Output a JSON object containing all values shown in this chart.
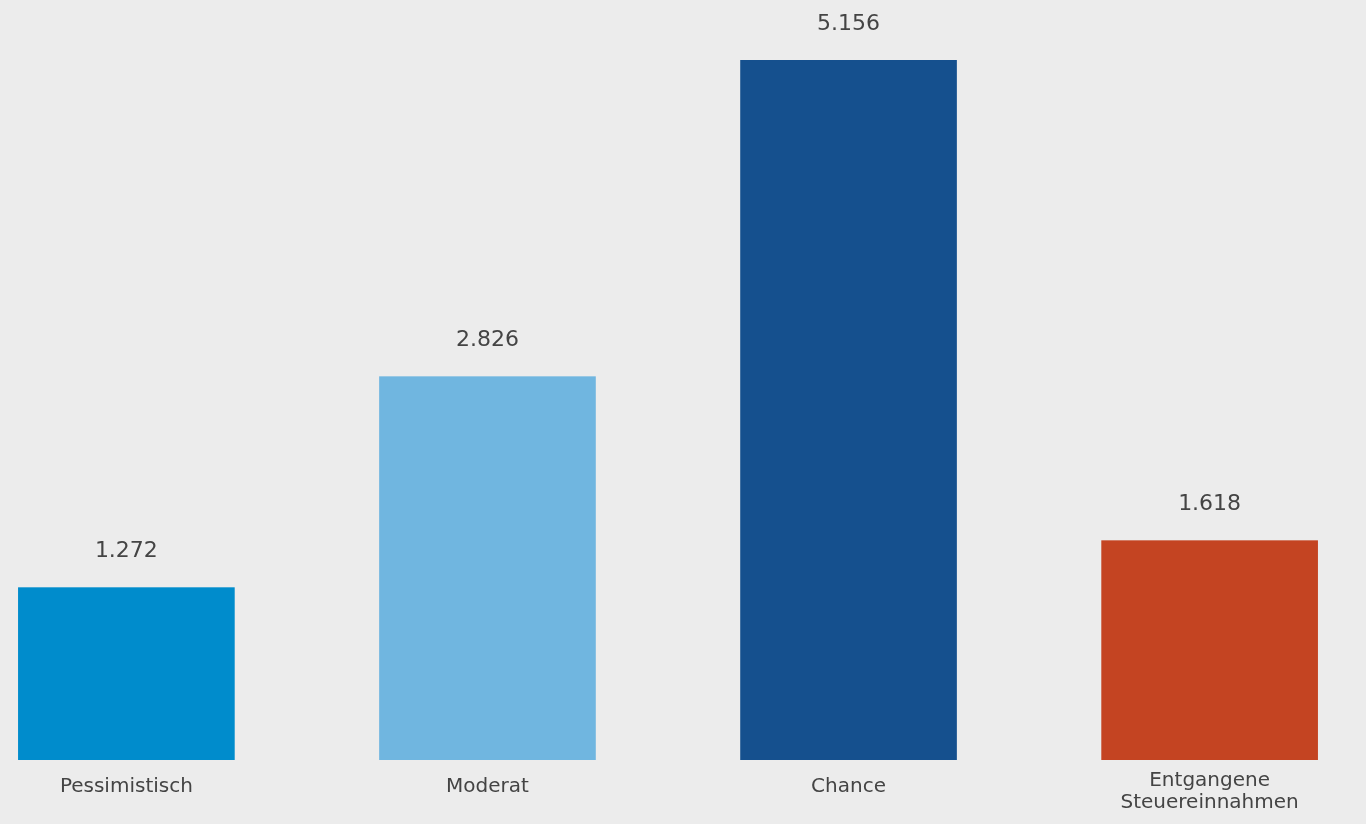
{
  "chart_data": {
    "type": "bar",
    "categories": [
      "Pessimistisch",
      "Moderat",
      "Chance",
      "Entgangene Steuereinnahmen"
    ],
    "values": [
      1272,
      2826,
      5156,
      1618
    ],
    "colors": [
      "#008ccc",
      "#70b6e0",
      "#15508e",
      "#c44422"
    ],
    "value_labels": [
      "1.272",
      "2.826",
      "5.156",
      "1.618"
    ]
  }
}
